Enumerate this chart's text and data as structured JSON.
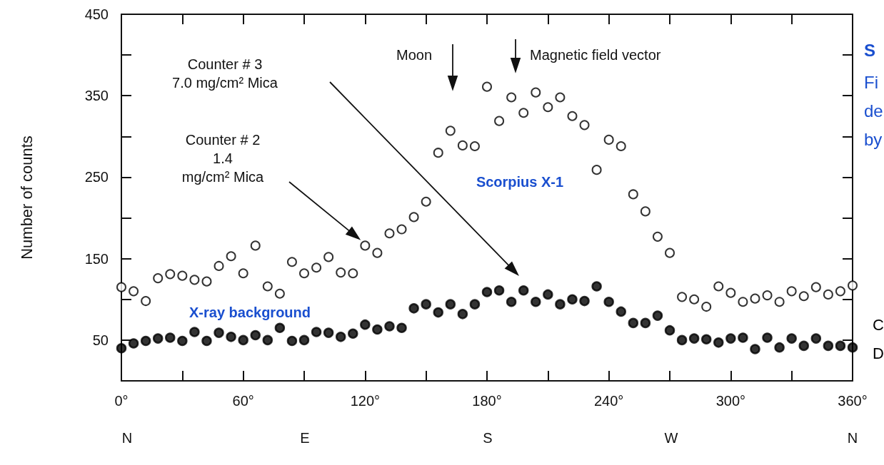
{
  "chart_data": {
    "type": "scatter",
    "ylabel": "Number of counts",
    "x": [
      0,
      6,
      12,
      18,
      24,
      30,
      36,
      42,
      48,
      54,
      60,
      66,
      72,
      78,
      84,
      90,
      96,
      102,
      108,
      114,
      120,
      126,
      132,
      138,
      144,
      150,
      156,
      162,
      168,
      174,
      180,
      186,
      192,
      198,
      204,
      210,
      216,
      222,
      228,
      234,
      240,
      246,
      252,
      258,
      264,
      270,
      276,
      282,
      288,
      294,
      300,
      306,
      312,
      318,
      324,
      330,
      336,
      342,
      348,
      354,
      360
    ],
    "series": [
      {
        "color": "#000000",
        "marker": "emptyCircle",
        "values": [
          115,
          110,
          98,
          126,
          131,
          129,
          124,
          122,
          141,
          153,
          132,
          166,
          116,
          107,
          146,
          132,
          139,
          152,
          133,
          132,
          166,
          157,
          181,
          186,
          201,
          220,
          280,
          307,
          289,
          288,
          361,
          319,
          348,
          329,
          354,
          336,
          348,
          325,
          314,
          259,
          296,
          288,
          229,
          208,
          177,
          157,
          103,
          100,
          91,
          116,
          108,
          97,
          101,
          105,
          97,
          110,
          104,
          115,
          106,
          110,
          117
        ]
      },
      {
        "color": "#000000",
        "marker": "circle",
        "values": [
          40,
          46,
          49,
          52,
          53,
          49,
          60,
          49,
          59,
          54,
          50,
          56,
          50,
          65,
          49,
          50,
          60,
          59,
          54,
          58,
          69,
          63,
          67,
          65,
          89,
          94,
          84,
          94,
          82,
          94,
          109,
          111,
          97,
          111,
          97,
          106,
          94,
          100,
          98,
          116,
          97,
          85,
          71,
          71,
          80,
          62,
          50,
          52,
          51,
          47,
          52,
          53,
          39,
          53,
          41,
          52,
          43,
          52,
          43,
          43,
          41
        ]
      }
    ],
    "xlim": [
      0,
      360
    ],
    "xticks": [
      {
        "value": 0,
        "label": "0°"
      },
      {
        "value": 30,
        "label": null
      },
      {
        "value": 60,
        "label": "60°"
      },
      {
        "value": 90,
        "label": null
      },
      {
        "value": 120,
        "label": "120°"
      },
      {
        "value": 150,
        "label": null
      },
      {
        "value": 180,
        "label": "180°"
      },
      {
        "value": 210,
        "label": null
      },
      {
        "value": 240,
        "label": "240°"
      },
      {
        "value": 270,
        "label": null
      },
      {
        "value": 300,
        "label": "300°"
      },
      {
        "value": 330,
        "label": null
      },
      {
        "value": 360,
        "label": "360°"
      }
    ],
    "ylim": [
      0,
      450
    ],
    "yticks": [
      {
        "value": 50,
        "label": "50"
      },
      {
        "value": 100,
        "label": null
      },
      {
        "value": 150,
        "label": "150"
      },
      {
        "value": 200,
        "label": null
      },
      {
        "value": 250,
        "label": "250"
      },
      {
        "value": 300,
        "label": null
      },
      {
        "value": 350,
        "label": "350"
      },
      {
        "value": 400,
        "label": null
      },
      {
        "value": 450,
        "label": "450"
      }
    ],
    "annotations": [
      "Counter # 3\n7.0 mg/cm² Mica",
      "Counter # 2\n1.4\nmg/cm² Mica",
      "Moon",
      "Magnetic field vector",
      "Scorpius X-1",
      "X-ray background",
      "S",
      "Fi",
      "de",
      "by",
      "C",
      "D",
      "N",
      "E",
      "S",
      "W",
      "N"
    ]
  }
}
